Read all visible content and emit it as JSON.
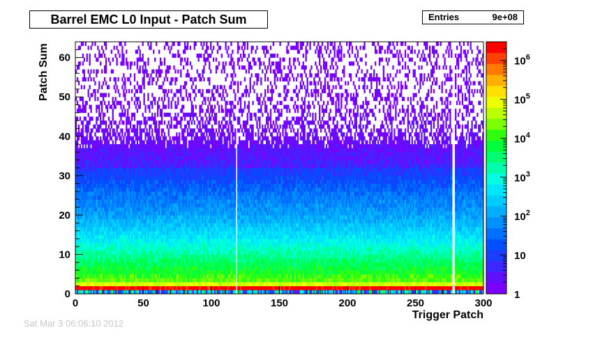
{
  "title": "Barrel EMC L0 Input - Patch Sum",
  "stats": {
    "label": "Entries",
    "value": "9e+08"
  },
  "footer_text": "Sat Mar  3 06:06:10 2012",
  "chart_data": {
    "type": "heatmap",
    "title": "Barrel EMC L0 Input - Patch Sum",
    "xlabel": "Trigger Patch",
    "ylabel": "Patch Sum",
    "xlim": [
      0,
      300
    ],
    "ylim": [
      0,
      64
    ],
    "x_ticks": [
      "0",
      "50",
      "100",
      "150",
      "200",
      "250",
      "300"
    ],
    "y_ticks": [
      "0",
      "10",
      "20",
      "30",
      "40",
      "50",
      "60"
    ],
    "z_scale": "log",
    "zlim": [
      1,
      3000000
    ],
    "z_ticks": [
      "1",
      "10",
      "10^2",
      "10^3",
      "10^4",
      "10^5",
      "10^6"
    ],
    "grid": false,
    "palette": [
      "#7a00ff",
      "#6010ff",
      "#3c28ff",
      "#1a3dff",
      "#0050ff",
      "#0070ff",
      "#0090ff",
      "#00afff",
      "#00ccff",
      "#00e6ff",
      "#00ffe0",
      "#00ffaa",
      "#00ff70",
      "#00ff3a",
      "#30ff10",
      "#7cff00",
      "#bbff00",
      "#eeff00",
      "#ffe000",
      "#ffb000",
      "#ff7800",
      "#ff4000",
      "#ff0000"
    ],
    "empty_bins_x": [
      118,
      277,
      278
    ],
    "saturated_row_y": 1,
    "description_counts": [
      {
        "y": 1,
        "count": 2000000
      },
      {
        "y": 3,
        "count": 20000
      },
      {
        "y": 5,
        "count": 10000
      },
      {
        "y": 10,
        "count": 2000
      },
      {
        "y": 15,
        "count": 400
      },
      {
        "y": 20,
        "count": 100
      },
      {
        "y": 25,
        "count": 40
      },
      {
        "y": 30,
        "count": 12
      },
      {
        "y": 35,
        "count": 5
      },
      {
        "y": 40,
        "count": 2
      },
      {
        "y": 50,
        "count": 1
      },
      {
        "y": 62,
        "count": 1
      }
    ]
  }
}
